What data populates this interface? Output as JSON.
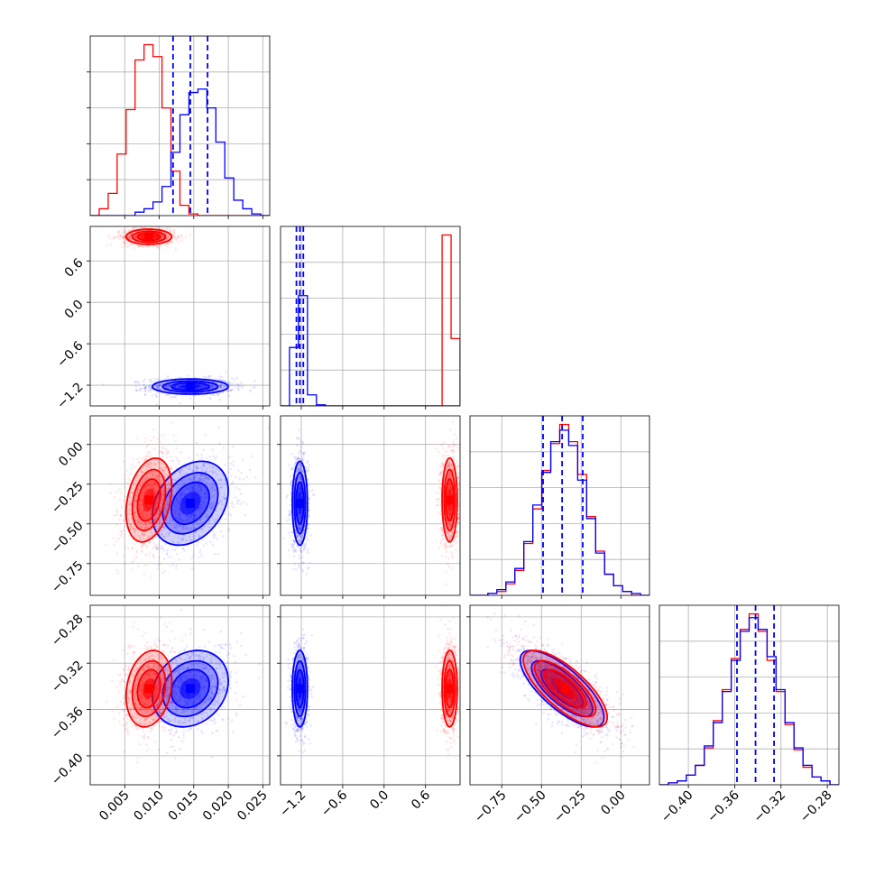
{
  "chart_data": {
    "type": "corner",
    "series": [
      {
        "name": "blue",
        "color": "#0000ff"
      },
      {
        "name": "red",
        "color": "#ff0000"
      }
    ],
    "parameters": [
      {
        "id": "p1",
        "range": [
          0.0,
          0.026
        ],
        "ticks": [
          0.005,
          0.01,
          0.015,
          0.02,
          0.025
        ],
        "tick_labels": [
          "0.005",
          "0.010",
          "0.015",
          "0.020",
          "0.025"
        ]
      },
      {
        "id": "p2",
        "range": [
          -1.5,
          1.1
        ],
        "ticks": [
          -1.2,
          -0.6,
          0.0,
          0.6
        ],
        "tick_labels": [
          "−1.2",
          "−0.6",
          "0.0",
          "0.6"
        ]
      },
      {
        "id": "p3",
        "range": [
          -0.95,
          0.18
        ],
        "ticks": [
          -0.75,
          -0.5,
          -0.25,
          0.0
        ],
        "tick_labels": [
          "−0.75",
          "−0.50",
          "−0.25",
          "0.00"
        ]
      },
      {
        "id": "p4",
        "range": [
          -0.425,
          -0.27
        ],
        "ticks": [
          -0.4,
          -0.36,
          -0.32,
          -0.28
        ],
        "tick_labels": [
          "−0.40",
          "−0.36",
          "−0.32",
          "−0.28"
        ]
      }
    ],
    "quantiles_blue": [
      [
        0.012,
        0.0145,
        0.017
      ],
      [
        -1.27,
        -1.22,
        -1.17
      ],
      [
        -0.49,
        -0.37,
        -0.24
      ],
      [
        -0.358,
        -0.342,
        -0.326
      ]
    ],
    "means": {
      "blue": [
        0.0145,
        -1.22,
        -0.37,
        -0.342
      ],
      "red": [
        0.0085,
        0.95,
        -0.35,
        -0.342
      ]
    },
    "sigmas": {
      "blue": [
        0.0025,
        0.05,
        0.12,
        0.015
      ],
      "red": [
        0.0015,
        0.05,
        0.12,
        0.015
      ]
    },
    "correlations": {
      "blue": {
        "0-2": 0.3,
        "0-3": 0.2,
        "2-3": -0.75
      },
      "red": {
        "0-2": 0.3,
        "0-3": 0.2,
        "2-3": -0.75
      }
    },
    "histograms": [
      {
        "param": 0,
        "bins": [
          0.0,
          0.0013,
          0.0026,
          0.0039,
          0.0052,
          0.0065,
          0.0078,
          0.0091,
          0.0104,
          0.0117,
          0.013,
          0.0143,
          0.0156,
          0.0169,
          0.0182,
          0.0195,
          0.0208,
          0.0221,
          0.0234,
          0.0247,
          0.026
        ],
        "blue": [
          0,
          0,
          0,
          0,
          0,
          2,
          4,
          8,
          17,
          37,
          59,
          72,
          74,
          63,
          43,
          22,
          9,
          4,
          1,
          0
        ],
        "red": [
          0,
          4,
          13,
          36,
          62,
          91,
          100,
          93,
          63,
          26,
          6,
          1,
          0,
          0,
          0,
          0,
          0,
          0,
          0,
          0
        ]
      },
      {
        "param": 1,
        "bins": [
          -1.5,
          -1.37,
          -1.24,
          -1.11,
          -0.98,
          -0.85,
          -0.72,
          -0.59,
          -0.46,
          -0.33,
          -0.2,
          -0.07,
          0.06,
          0.19,
          0.32,
          0.45,
          0.58,
          0.71,
          0.84,
          0.97,
          1.1
        ],
        "blue": [
          0,
          53,
          100,
          10,
          1,
          0,
          0,
          0,
          0,
          0,
          0,
          0,
          0,
          0,
          0,
          0,
          0,
          0,
          0,
          0
        ],
        "red": [
          0,
          0,
          0,
          0,
          0,
          0,
          0,
          0,
          0,
          0,
          0,
          0,
          0,
          0,
          0,
          0,
          0,
          0,
          155,
          61
        ]
      },
      {
        "param": 2,
        "bins": [
          -0.95,
          -0.8935,
          -0.837,
          -0.7805,
          -0.724,
          -0.6675,
          -0.611,
          -0.5545,
          -0.498,
          -0.4415,
          -0.385,
          -0.3285,
          -0.272,
          -0.2155,
          -0.159,
          -0.1025,
          -0.046,
          0.0105,
          0.067,
          0.1235,
          0.18
        ],
        "blue": [
          0,
          0,
          1,
          3,
          7,
          14,
          28,
          47,
          64,
          80,
          86,
          78,
          60,
          40,
          22,
          11,
          5,
          2,
          1,
          0
        ],
        "red": [
          0,
          0,
          1,
          2,
          6,
          13,
          27,
          45,
          65,
          79,
          89,
          80,
          63,
          41,
          23,
          11,
          5,
          2,
          0,
          0
        ]
      },
      {
        "param": 3,
        "bins": [
          -0.425,
          -0.41725,
          -0.4095,
          -0.40175,
          -0.394,
          -0.38625,
          -0.3785,
          -0.37075,
          -0.363,
          -0.35525,
          -0.3475,
          -0.33975,
          -0.332,
          -0.32425,
          -0.3165,
          -0.30875,
          -0.301,
          -0.29325,
          -0.2855,
          -0.27775,
          -0.27
        ],
        "blue": [
          0,
          1,
          2,
          5,
          10,
          20,
          32,
          48,
          64,
          79,
          86,
          80,
          66,
          49,
          32,
          19,
          10,
          4,
          2,
          0
        ],
        "red": [
          0,
          1,
          2,
          5,
          10,
          19,
          33,
          49,
          65,
          80,
          88,
          79,
          64,
          48,
          31,
          18,
          9,
          4,
          2,
          0
        ]
      }
    ]
  }
}
